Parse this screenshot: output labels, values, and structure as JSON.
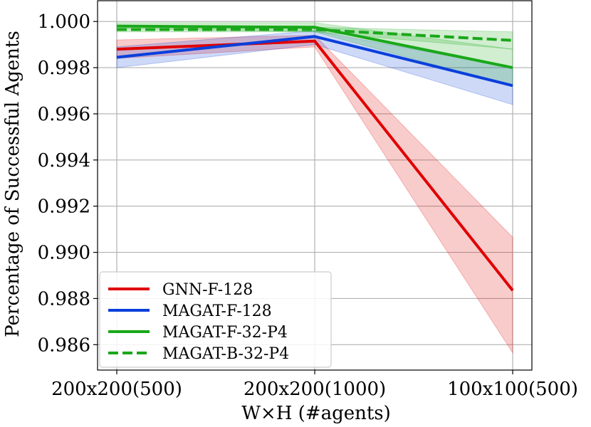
{
  "chart_data": {
    "type": "line",
    "categories": [
      "200x200(500)",
      "200x200(1000)",
      "100x100(500)"
    ],
    "xlabel": "W×H (#agents)",
    "ylabel": "Percentage of Successful Agents",
    "ylim": [
      0.9849,
      1.0009
    ],
    "yticks": [
      0.986,
      0.988,
      0.99,
      0.992,
      0.994,
      0.996,
      0.998,
      1.0
    ],
    "ytick_labels": [
      "0.986",
      "0.988",
      "0.990",
      "0.992",
      "0.994",
      "0.996",
      "0.998",
      "1.000"
    ],
    "grid": true,
    "legend_position": "bottom-left",
    "series": [
      {
        "name": "GNN-F-128",
        "color": "#e00000",
        "style": "solid",
        "values": [
          0.9988,
          0.99915,
          0.98835
        ],
        "lower": [
          0.9984,
          0.9989,
          0.98565
        ],
        "upper": [
          0.9992,
          0.9994,
          0.99065
        ]
      },
      {
        "name": "MAGAT-F-128",
        "color": "#0a3fdc",
        "style": "solid",
        "values": [
          0.99845,
          0.99935,
          0.99722
        ],
        "lower": [
          0.998,
          0.999,
          0.9964
        ],
        "upper": [
          0.9989,
          0.9996,
          0.998
        ]
      },
      {
        "name": "MAGAT-F-32-P4",
        "color": "#1aa81a",
        "style": "solid",
        "values": [
          0.9998,
          0.99975,
          0.998
        ],
        "lower": [
          0.9997,
          0.99955,
          0.9972
        ],
        "upper": [
          0.99995,
          0.99995,
          0.9988
        ]
      },
      {
        "name": "MAGAT-B-32-P4",
        "color": "#1aa81a",
        "style": "dashed",
        "values": [
          0.99965,
          0.99965,
          0.99918
        ],
        "lower": [
          0.99955,
          0.99955,
          0.9988
        ],
        "upper": [
          0.99975,
          0.99975,
          0.99955
        ]
      }
    ]
  }
}
